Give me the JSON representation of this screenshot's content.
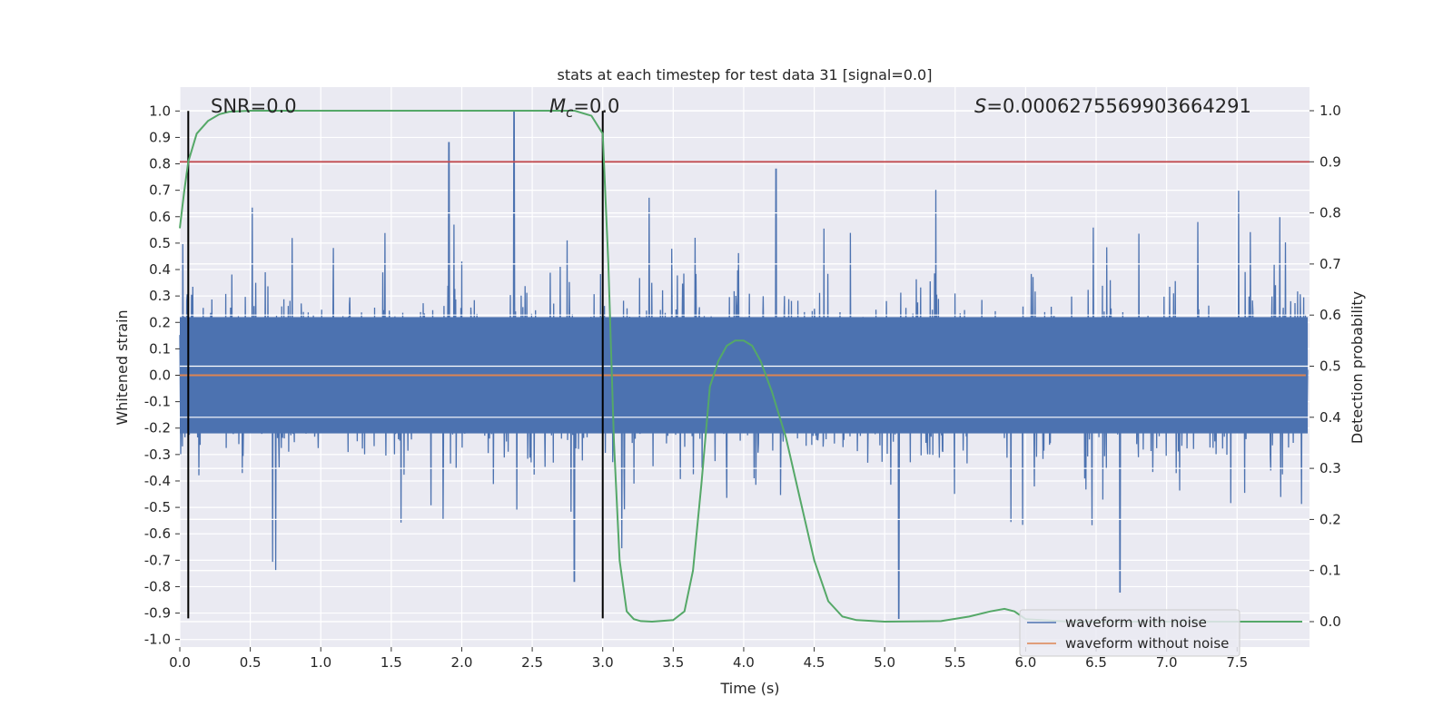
{
  "chart_data": {
    "type": "line",
    "title": "stats at each timestep for test data 31 [signal=0.0]",
    "xlabel": "Time (s)",
    "ylabel": "Whitened strain",
    "y2label": "Detection probability",
    "xlim": [
      0.0,
      8.0
    ],
    "ylim": [
      -1.0,
      1.0
    ],
    "y2lim": [
      0.0,
      1.0
    ],
    "xticks": [
      0.0,
      0.5,
      1.0,
      1.5,
      2.0,
      2.5,
      3.0,
      3.5,
      4.0,
      4.5,
      5.0,
      5.5,
      6.0,
      6.5,
      7.0,
      7.5
    ],
    "yticks": [
      -1.0,
      -0.9,
      -0.8,
      -0.7,
      -0.6,
      -0.5,
      -0.4,
      -0.3,
      -0.2,
      -0.1,
      0.0,
      0.1,
      0.2,
      0.3,
      0.4,
      0.5,
      0.6,
      0.7,
      0.8,
      0.9,
      1.0
    ],
    "y2ticks": [
      0.0,
      0.1,
      0.2,
      0.3,
      0.4,
      0.5,
      0.6,
      0.7,
      0.8,
      0.9,
      1.0
    ],
    "grid": true,
    "legend_position": "bottom-right",
    "annotations": {
      "snr": "SNR=0.0",
      "mc_symbol": "M",
      "mc_sub": "c",
      "mc_value": "=0.0",
      "s_symbol": "S",
      "s_value": "=0.0006275569903664291"
    },
    "series": [
      {
        "name": "waveform with noise",
        "axis": "left",
        "color": "#4c72b0",
        "style": "dense noise trace, sampled at 2048 Hz",
        "peaks": [
          {
            "x": 1.91,
            "y": 0.88
          },
          {
            "x": 2.37,
            "y": 1.0
          },
          {
            "x": 4.23,
            "y": 0.78
          },
          {
            "x": 6.67,
            "y": -0.82
          },
          {
            "x": 5.1,
            "y": -0.92
          },
          {
            "x": 2.8,
            "y": -0.78
          }
        ]
      },
      {
        "name": "waveform without noise",
        "axis": "left",
        "color": "#dd8452",
        "x": [
          0.0,
          8.0
        ],
        "y": [
          0.0,
          0.0
        ]
      },
      {
        "name": "detection probability",
        "axis": "right",
        "color": "#55a868",
        "x": [
          0.0,
          0.03,
          0.06,
          0.12,
          0.2,
          0.28,
          0.35,
          0.5,
          1.0,
          2.0,
          2.5,
          2.8,
          2.92,
          3.0,
          3.04,
          3.08,
          3.12,
          3.17,
          3.22,
          3.27,
          3.35,
          3.5,
          3.58,
          3.64,
          3.7,
          3.76,
          3.82,
          3.88,
          3.94,
          4.0,
          4.06,
          4.12,
          4.2,
          4.3,
          4.4,
          4.5,
          4.6,
          4.7,
          4.8,
          5.0,
          5.4,
          5.6,
          5.75,
          5.85,
          5.92,
          6.0,
          6.3,
          8.0
        ],
        "y": [
          0.77,
          0.84,
          0.9,
          0.955,
          0.98,
          0.993,
          0.998,
          1.0,
          1.0,
          1.0,
          1.0,
          1.0,
          0.99,
          0.955,
          0.7,
          0.35,
          0.12,
          0.02,
          0.005,
          0.001,
          0.0,
          0.003,
          0.02,
          0.1,
          0.27,
          0.46,
          0.51,
          0.54,
          0.55,
          0.55,
          0.54,
          0.51,
          0.45,
          0.36,
          0.24,
          0.12,
          0.04,
          0.01,
          0.003,
          0.0,
          0.001,
          0.01,
          0.02,
          0.025,
          0.02,
          0.005,
          0.0,
          0.0
        ]
      }
    ],
    "vertical_lines": [
      {
        "x": 0.06,
        "color": "#000000"
      },
      {
        "x": 3.0,
        "color": "#000000"
      }
    ],
    "threshold": {
      "axis": "right",
      "value": 0.9,
      "color": "#c44e52"
    }
  }
}
